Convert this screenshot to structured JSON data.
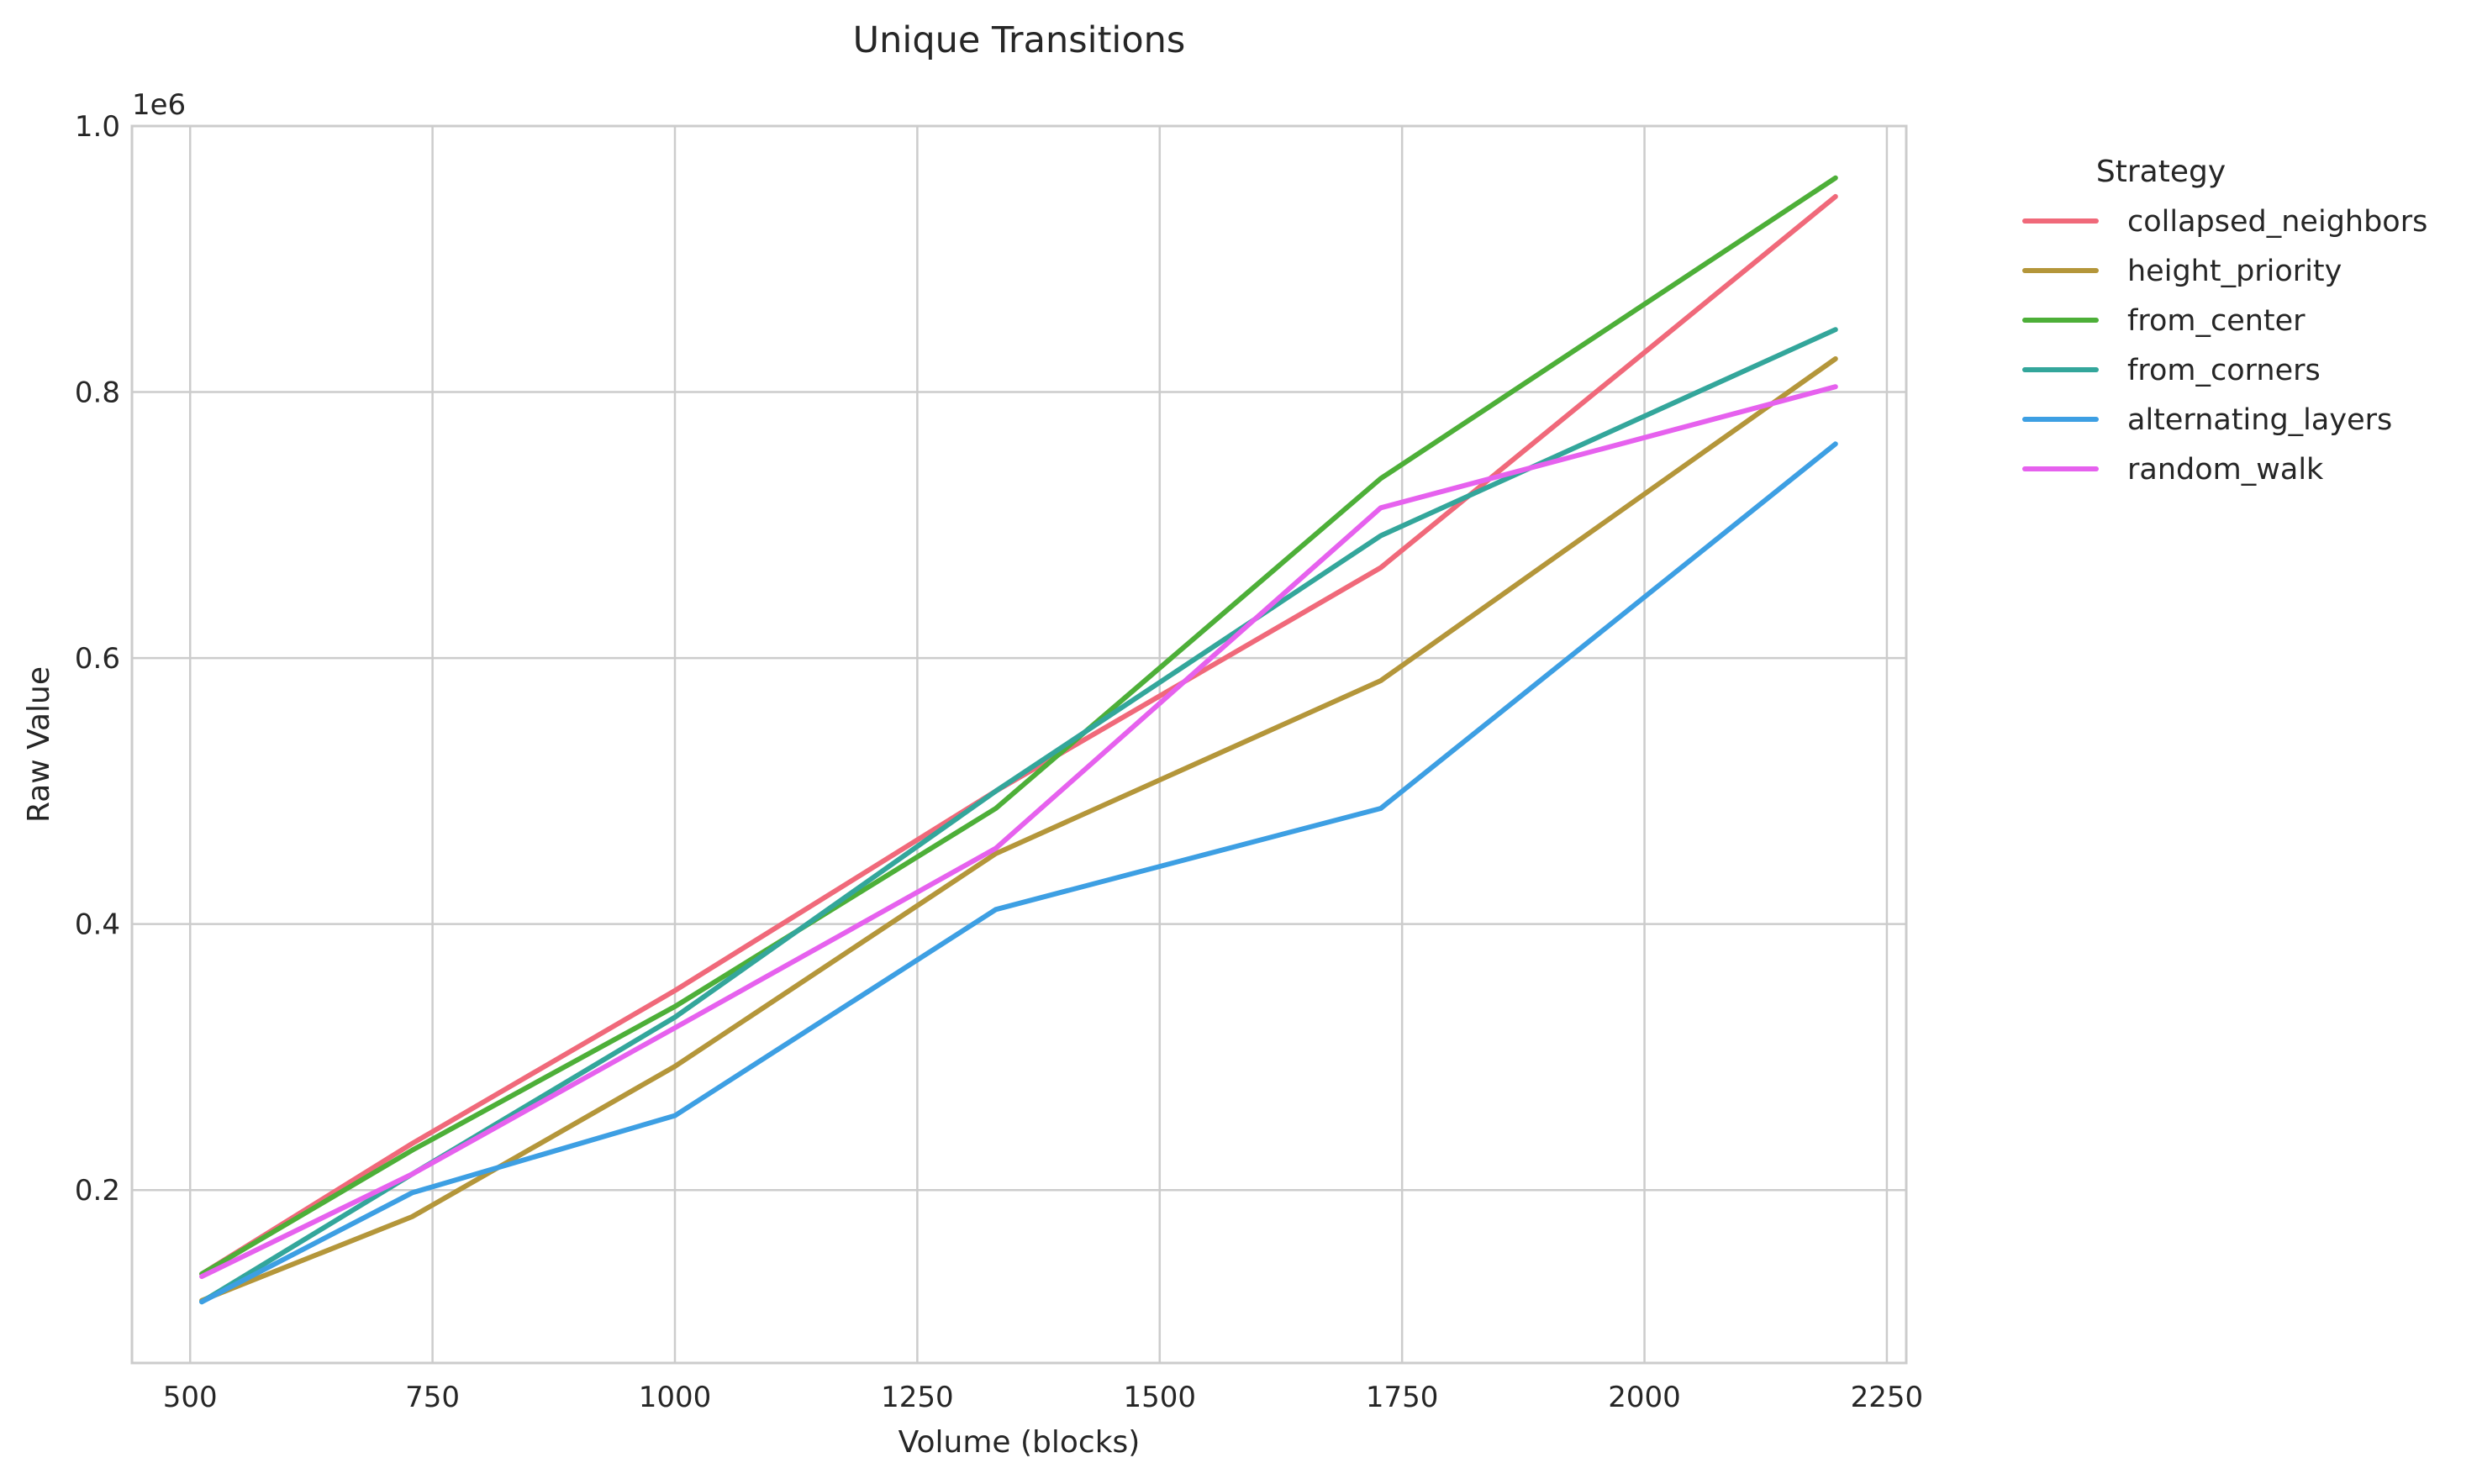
{
  "chart_data": {
    "type": "line",
    "title": "Unique Transitions",
    "xlabel": "Volume (blocks)",
    "ylabel": "Raw Value",
    "y_offset_label": "1e6",
    "xlim": [
      440,
      2270
    ],
    "ylim": [
      0.07,
      1.0
    ],
    "xticks": [
      500,
      750,
      1000,
      1250,
      1500,
      1750,
      2000,
      2250
    ],
    "yticks": [
      0.2,
      0.4,
      0.6,
      0.8,
      1.0
    ],
    "xtick_labels": [
      "500",
      "750",
      "1000",
      "1250",
      "1500",
      "1750",
      "2000",
      "2250"
    ],
    "ytick_labels": [
      "0.2",
      "0.4",
      "0.6",
      "0.8",
      "1.0"
    ],
    "grid": true,
    "legend": {
      "title": "Strategy",
      "placement": "outside-top-right"
    },
    "x": [
      512,
      729,
      1000,
      1331,
      1728,
      2197
    ],
    "series": [
      {
        "name": "collapsed_neighbors",
        "color": "#f0697a",
        "values": [
          0.137,
          0.235,
          0.35,
          0.5,
          0.668,
          0.947
        ]
      },
      {
        "name": "height_priority",
        "color": "#b4963a",
        "values": [
          0.117,
          0.18,
          0.293,
          0.453,
          0.583,
          0.825
        ]
      },
      {
        "name": "from_center",
        "color": "#4daf38",
        "values": [
          0.137,
          0.23,
          0.338,
          0.487,
          0.735,
          0.961
        ]
      },
      {
        "name": "from_corners",
        "color": "#33a69b",
        "values": [
          0.116,
          0.212,
          0.33,
          0.5,
          0.692,
          0.847
        ]
      },
      {
        "name": "alternating_layers",
        "color": "#3d9fe3",
        "values": [
          0.116,
          0.198,
          0.256,
          0.411,
          0.487,
          0.761
        ]
      },
      {
        "name": "random_walk",
        "color": "#e661ee",
        "values": [
          0.135,
          0.212,
          0.322,
          0.457,
          0.713,
          0.804
        ]
      }
    ]
  }
}
